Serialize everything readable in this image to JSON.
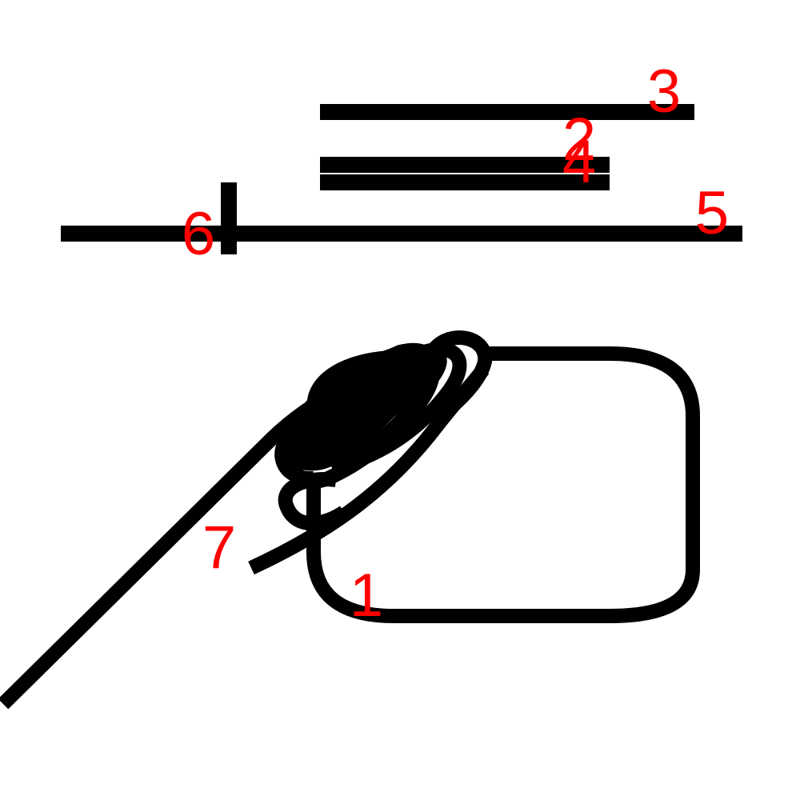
{
  "diagram": {
    "background_color": "#ffffff",
    "stroke_color": "#000000",
    "label_color": "#ff0000",
    "labels": {
      "l1": "1",
      "l2": "2",
      "l3": "3",
      "l4": "4",
      "l5": "5",
      "l6": "6",
      "l7": "7"
    }
  }
}
